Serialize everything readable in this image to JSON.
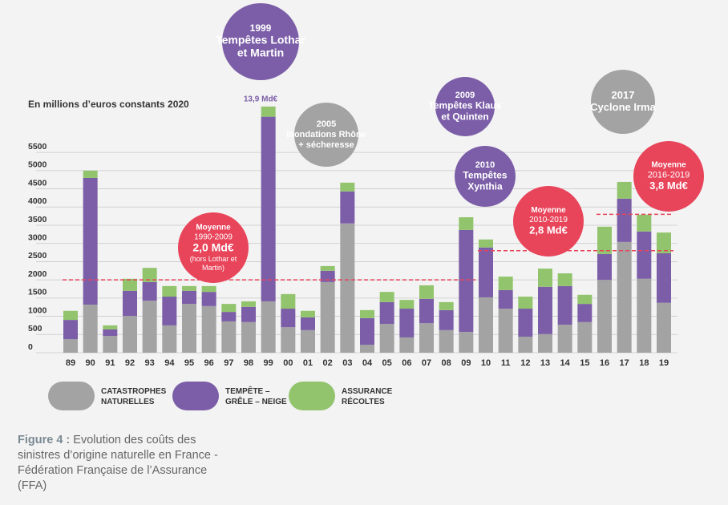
{
  "chart_data": {
    "type": "stacked-bar",
    "axis_title": "En millions d’euros constants 2020",
    "categories": [
      "89",
      "90",
      "91",
      "92",
      "93",
      "94",
      "95",
      "96",
      "97",
      "98",
      "99",
      "00",
      "01",
      "02",
      "03",
      "04",
      "05",
      "06",
      "07",
      "08",
      "09",
      "10",
      "11",
      "12",
      "13",
      "14",
      "15",
      "16",
      "17",
      "18",
      "19"
    ],
    "series": [
      {
        "name": "CATASTROPHES NATURELLES",
        "color": "#a3a3a3",
        "values": [
          370,
          1320,
          460,
          1010,
          1430,
          750,
          1340,
          1280,
          860,
          840,
          1410,
          700,
          620,
          1940,
          3550,
          220,
          790,
          420,
          810,
          620,
          570,
          1520,
          1210,
          440,
          510,
          770,
          840,
          2000,
          3040,
          2030,
          1370
        ]
      },
      {
        "name": "TEMPÊTE – GRÊLE – NEIGE",
        "color": "#7b5ea7",
        "values": [
          530,
          3480,
          180,
          690,
          510,
          790,
          360,
          390,
          260,
          420,
          5070,
          510,
          350,
          310,
          880,
          730,
          600,
          790,
          670,
          550,
          2800,
          1370,
          510,
          770,
          1300,
          1060,
          500,
          710,
          1190,
          1300,
          1360
        ]
      },
      {
        "name": "ASSURANCE RÉCOLTES",
        "color": "#92c46d",
        "values": [
          250,
          200,
          110,
          330,
          390,
          290,
          130,
          160,
          220,
          150,
          280,
          400,
          180,
          130,
          240,
          220,
          280,
          240,
          370,
          220,
          350,
          220,
          370,
          330,
          500,
          350,
          250,
          750,
          460,
          460,
          570
        ]
      }
    ],
    "ylim": [
      0,
      7000
    ],
    "yticks": [
      0,
      500,
      1000,
      1500,
      2000,
      2500,
      3000,
      3500,
      4000,
      4500,
      5000,
      5500
    ],
    "grid": true,
    "annotations": [
      {
        "lines": [
          "1999",
          "Tempêtes Lothar",
          "et Martin"
        ],
        "color": "#7b5ea7"
      },
      {
        "lines": [
          "2005",
          "Inondations Rhône",
          "+ sécheresse"
        ],
        "color": "#a3a3a3"
      },
      {
        "lines": [
          "2009",
          "Tempêtes Klaus",
          "et Quinten"
        ],
        "color": "#7b5ea7"
      },
      {
        "lines": [
          "2010",
          "Tempêtes",
          "Xynthia"
        ],
        "color": "#7b5ea7"
      },
      {
        "lines": [
          "2017",
          "Cyclone Irma"
        ],
        "color": "#a3a3a3"
      },
      {
        "lines": [
          "Moyenne",
          "1990-2009",
          "2,0 Md€",
          "(hors Lothar et",
          "Martin)"
        ],
        "color": "#e8445a",
        "value": 2000,
        "from": "89",
        "to": "09"
      },
      {
        "lines": [
          "Moyenne",
          "2010-2019",
          "2,8 Md€"
        ],
        "color": "#e8445a",
        "value": 2800,
        "from": "10",
        "to": "19"
      },
      {
        "lines": [
          "Moyenne",
          "2016-2019",
          "3,8 Md€"
        ],
        "color": "#e8445a",
        "value": 3800,
        "from": "16",
        "to": "19"
      }
    ],
    "note_1999": "13,9 Md€"
  },
  "caption": {
    "label": "Figure 4 :",
    "text": "Evolution des coûts des sinistres d’origine naturelle en France - Fédération Française de l’Assurance (FFA)"
  }
}
